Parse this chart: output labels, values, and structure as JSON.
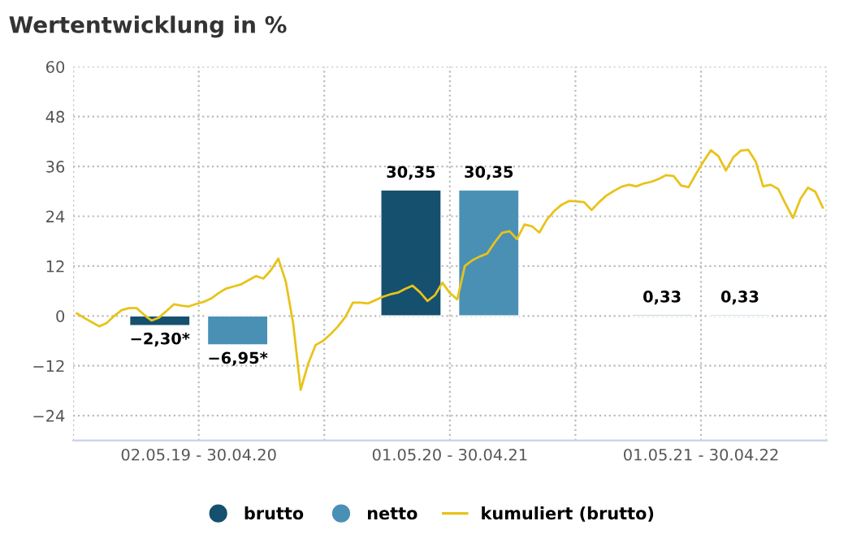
{
  "chart_data": [
    {
      "type": "bar",
      "title": "Wertentwicklung in %",
      "categories": [
        "02.05.19 - 30.04.20",
        "01.05.20 - 30.04.21",
        "01.05.21 - 30.04.22"
      ],
      "series": [
        {
          "name": "brutto",
          "color": "#15506e",
          "values": [
            -2.3,
            30.35,
            0.33
          ],
          "value_labels": [
            "−2,30*",
            "30,35",
            "0,33"
          ]
        },
        {
          "name": "netto",
          "color": "#4a90b5",
          "values": [
            -6.95,
            30.35,
            0.33
          ],
          "value_labels": [
            "−6,95*",
            "30,35",
            "0,33"
          ]
        }
      ],
      "ylim": [
        -30,
        60
      ],
      "yticks": [
        -24,
        -12,
        0,
        12,
        24,
        36,
        48,
        60
      ],
      "grid": true,
      "legend": "bottom"
    },
    {
      "type": "line",
      "categories": [
        null,
        null,
        null,
        null,
        null,
        null,
        null,
        null,
        null,
        null,
        null,
        null,
        null,
        null,
        null,
        null,
        null,
        null,
        null,
        null,
        null,
        null,
        null,
        null,
        null,
        null,
        null,
        null,
        null,
        null,
        null,
        null,
        null,
        null,
        null,
        null,
        null,
        null,
        null,
        null,
        null,
        null,
        null,
        null,
        null,
        null,
        null,
        null,
        null,
        null,
        null,
        null,
        null,
        null,
        null,
        null,
        null,
        null,
        null,
        null,
        null,
        null,
        null,
        null,
        null,
        null,
        null,
        null,
        null,
        null,
        null,
        null,
        null,
        null,
        null,
        null,
        null,
        null,
        null,
        null,
        null,
        null,
        null,
        null,
        null,
        null,
        null,
        null,
        null,
        null,
        null,
        null,
        null,
        null,
        null,
        null,
        null,
        null,
        null,
        null,
        null
      ],
      "series": [
        {
          "name": "kumuliert (brutto)",
          "color": "#e8c31a",
          "values": [
            0.6,
            -0.5,
            -1.5,
            -2.5,
            -1.7,
            0,
            1.4,
            1.9,
            1.9,
            0.3,
            -1.1,
            -0.4,
            1.2,
            2.8,
            2.5,
            2.3,
            2.9,
            3.4,
            4.2,
            5.5,
            6.6,
            7.1,
            7.6,
            8.6,
            9.6,
            9.0,
            11.0,
            13.8,
            8.3,
            -1.9,
            -17.8,
            -11.5,
            -7.0,
            -6.0,
            -4.4,
            -2.5,
            -0.2,
            3.2,
            3.2,
            3.0,
            3.8,
            4.6,
            5.2,
            5.6,
            6.5,
            7.3,
            5.7,
            3.6,
            5.0,
            8.0,
            5.5,
            4.0,
            12.0,
            13.4,
            14.3,
            15.0,
            17.7,
            20.0,
            20.4,
            18.5,
            22.0,
            21.6,
            20.1,
            23.2,
            25.3,
            26.8,
            27.7,
            27.6,
            27.4,
            25.5,
            27.4,
            29.0,
            30.1,
            31.1,
            31.6,
            31.2,
            31.9,
            32.3,
            33.0,
            33.9,
            33.7,
            31.4,
            31.0,
            34.2,
            37.2,
            39.9,
            38.5,
            35.0,
            38.2,
            39.8,
            40.0,
            37.2,
            31.2,
            31.6,
            30.6,
            27.0,
            23.6,
            28.2,
            30.9,
            29.9,
            26.1
          ]
        }
      ],
      "ylim": [
        -30,
        60
      ],
      "legend": "bottom"
    }
  ]
}
